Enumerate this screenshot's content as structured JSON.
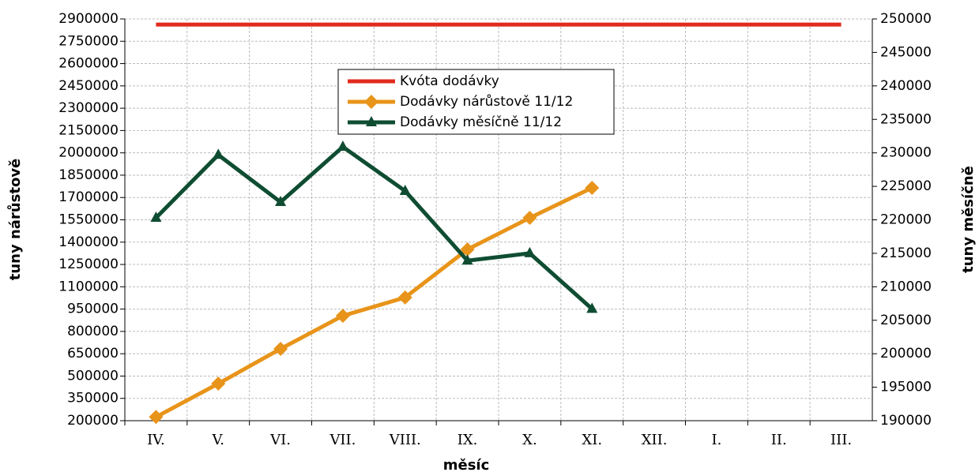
{
  "chart_data": {
    "type": "line",
    "xlabel": "měsíc",
    "ylabel": "tuny nárůstově",
    "y2label": "tuny měsíčně",
    "categories": [
      "IV.",
      "V.",
      "VI.",
      "VII.",
      "VIII.",
      "IX.",
      "X.",
      "XI.",
      "XII.",
      "I.",
      "II.",
      "III."
    ],
    "series": [
      {
        "name": "Kvóta dodávky",
        "color": "#e02b1d",
        "marker": "none",
        "values": [
          2862000,
          2862000,
          2862000,
          2862000,
          2862000,
          2862000,
          2862000,
          2862000,
          2862000,
          2862000,
          2862000,
          2862000
        ]
      },
      {
        "name": "Dodávky nárůstově 11/12",
        "color": "#e8941a",
        "marker": "diamond",
        "values": [
          225000,
          449000,
          683000,
          905000,
          1028000,
          1351000,
          1563000,
          1765000,
          null,
          null,
          null,
          null
        ]
      },
      {
        "name": "Dodávky měsíčně 11/12",
        "color": "#0f4d32",
        "marker": "triangle",
        "axis": "y2",
        "values": [
          220300,
          229700,
          222650,
          230900,
          224300,
          213900,
          215000,
          206700,
          null,
          null,
          null,
          null
        ]
      }
    ],
    "ylim": [
      200000,
      2900000
    ],
    "yticks": [
      200000,
      350000,
      500000,
      650000,
      800000,
      950000,
      1100000,
      1250000,
      1400000,
      1550000,
      1700000,
      1850000,
      2000000,
      2150000,
      2300000,
      2450000,
      2600000,
      2750000,
      2900000
    ],
    "y2lim": [
      190000,
      250000
    ],
    "y2ticks": [
      190000,
      195000,
      200000,
      205000,
      210000,
      215000,
      220000,
      225000,
      230000,
      235000,
      240000,
      245000,
      250000
    ],
    "grid": true
  }
}
